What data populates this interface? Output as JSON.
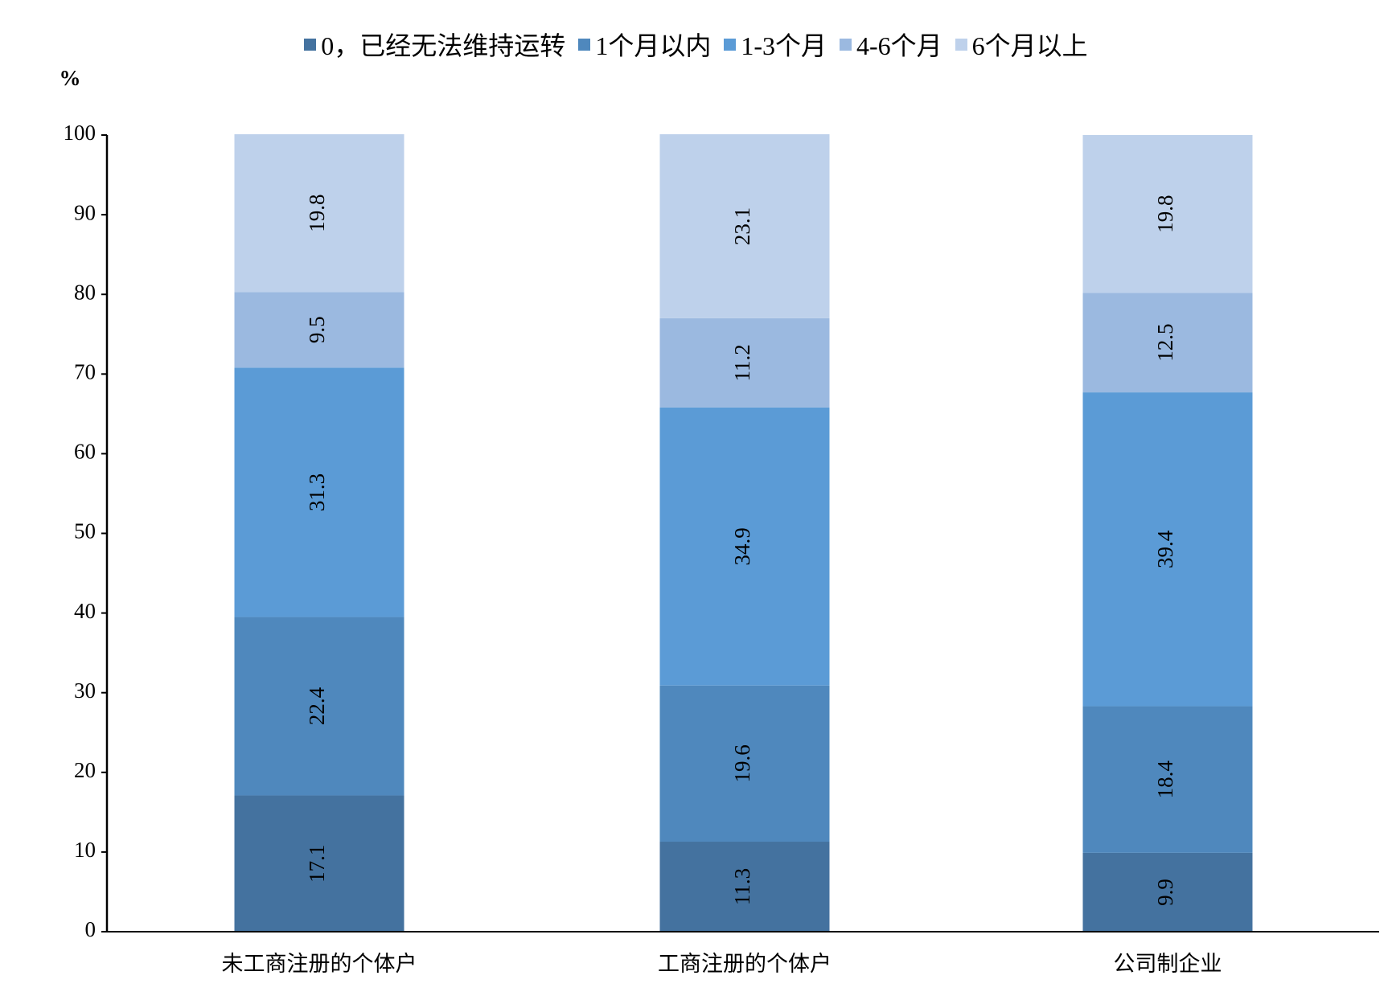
{
  "chart_data": {
    "type": "stacked_bar",
    "y_label": "%",
    "categories": [
      "未工商注册的个体户",
      "工商注册的个体户",
      "公司制企业"
    ],
    "series": [
      {
        "name": "0，已经无法维持运转",
        "color": "#44729f",
        "values": [
          17.1,
          11.3,
          9.9
        ]
      },
      {
        "name": "1个月以内",
        "color": "#4f88bd",
        "values": [
          22.4,
          19.6,
          18.4
        ]
      },
      {
        "name": "1-3个月",
        "color": "#5b9bd6",
        "values": [
          31.3,
          34.9,
          39.4
        ]
      },
      {
        "name": "4-6个月",
        "color": "#9bb9e0",
        "values": [
          9.5,
          11.2,
          12.5
        ]
      },
      {
        "name": "6个月以上",
        "color": "#bed1eb",
        "values": [
          19.8,
          23.1,
          19.8
        ]
      }
    ],
    "ylim": [
      0,
      100
    ],
    "yticks": [
      0,
      10,
      20,
      30,
      40,
      50,
      60,
      70,
      80,
      90,
      100
    ],
    "grid": false
  }
}
